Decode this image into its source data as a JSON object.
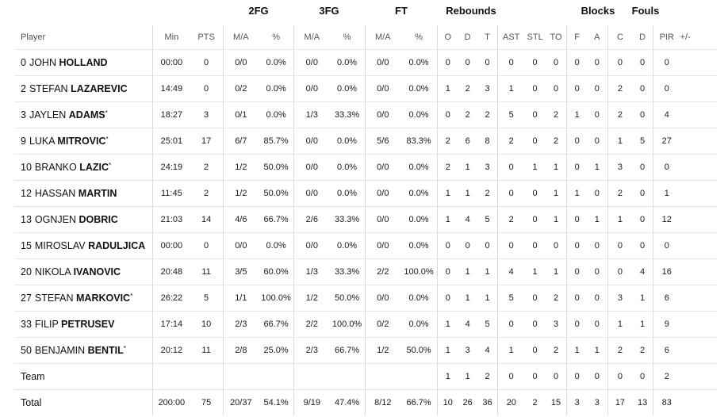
{
  "groups": {
    "fg2": "2FG",
    "fg3": "3FG",
    "ft": "FT",
    "reb": "Rebounds",
    "blk": "Blocks",
    "fouls": "Fouls"
  },
  "headers": {
    "player": "Player",
    "min": "Min",
    "pts": "PTS",
    "fg2_ma": "M/A",
    "fg2_pct": "%",
    "fg3_ma": "M/A",
    "fg3_pct": "%",
    "ft_ma": "M/A",
    "ft_pct": "%",
    "o": "O",
    "d": "D",
    "t": "T",
    "ast": "AST",
    "stl": "STL",
    "to": "TO",
    "bf": "F",
    "ba": "A",
    "fc": "C",
    "fd": "D",
    "pir": "PIR",
    "pm": "+/-"
  },
  "players": [
    {
      "num": "0",
      "first": "JOHN",
      "last": "HOLLAND",
      "star": "",
      "min": "00:00",
      "pts": "0",
      "fg2": "0/0",
      "fg2p": "0.0%",
      "fg3": "0/0",
      "fg3p": "0.0%",
      "ft": "0/0",
      "ftp": "0.0%",
      "o": "0",
      "d": "0",
      "t": "0",
      "ast": "0",
      "stl": "0",
      "to": "0",
      "bf": "0",
      "ba": "0",
      "fc": "0",
      "fd": "0",
      "pir": "0",
      "pm": ""
    },
    {
      "num": "2",
      "first": "STEFAN",
      "last": "LAZAREVIC",
      "star": "",
      "min": "14:49",
      "pts": "0",
      "fg2": "0/2",
      "fg2p": "0.0%",
      "fg3": "0/0",
      "fg3p": "0.0%",
      "ft": "0/0",
      "ftp": "0.0%",
      "o": "1",
      "d": "2",
      "t": "3",
      "ast": "1",
      "stl": "0",
      "to": "0",
      "bf": "0",
      "ba": "0",
      "fc": "2",
      "fd": "0",
      "pir": "0",
      "pm": ""
    },
    {
      "num": "3",
      "first": "JAYLEN",
      "last": "ADAMS",
      "star": "*",
      "min": "18:27",
      "pts": "3",
      "fg2": "0/1",
      "fg2p": "0.0%",
      "fg3": "1/3",
      "fg3p": "33.3%",
      "ft": "0/0",
      "ftp": "0.0%",
      "o": "0",
      "d": "2",
      "t": "2",
      "ast": "5",
      "stl": "0",
      "to": "2",
      "bf": "1",
      "ba": "0",
      "fc": "2",
      "fd": "0",
      "pir": "4",
      "pm": ""
    },
    {
      "num": "9",
      "first": "LUKA",
      "last": "MITROVIC",
      "star": "*",
      "min": "25:01",
      "pts": "17",
      "fg2": "6/7",
      "fg2p": "85.7%",
      "fg3": "0/0",
      "fg3p": "0.0%",
      "ft": "5/6",
      "ftp": "83.3%",
      "o": "2",
      "d": "6",
      "t": "8",
      "ast": "2",
      "stl": "0",
      "to": "2",
      "bf": "0",
      "ba": "0",
      "fc": "1",
      "fd": "5",
      "pir": "27",
      "pm": ""
    },
    {
      "num": "10",
      "first": "BRANKO",
      "last": "LAZIC",
      "star": "*",
      "min": "24:19",
      "pts": "2",
      "fg2": "1/2",
      "fg2p": "50.0%",
      "fg3": "0/0",
      "fg3p": "0.0%",
      "ft": "0/0",
      "ftp": "0.0%",
      "o": "2",
      "d": "1",
      "t": "3",
      "ast": "0",
      "stl": "1",
      "to": "1",
      "bf": "0",
      "ba": "1",
      "fc": "3",
      "fd": "0",
      "pir": "0",
      "pm": ""
    },
    {
      "num": "12",
      "first": "HASSAN",
      "last": "MARTIN",
      "star": "",
      "min": "11:45",
      "pts": "2",
      "fg2": "1/2",
      "fg2p": "50.0%",
      "fg3": "0/0",
      "fg3p": "0.0%",
      "ft": "0/0",
      "ftp": "0.0%",
      "o": "1",
      "d": "1",
      "t": "2",
      "ast": "0",
      "stl": "0",
      "to": "1",
      "bf": "1",
      "ba": "0",
      "fc": "2",
      "fd": "0",
      "pir": "1",
      "pm": ""
    },
    {
      "num": "13",
      "first": "OGNJEN",
      "last": "DOBRIC",
      "star": "",
      "min": "21:03",
      "pts": "14",
      "fg2": "4/6",
      "fg2p": "66.7%",
      "fg3": "2/6",
      "fg3p": "33.3%",
      "ft": "0/0",
      "ftp": "0.0%",
      "o": "1",
      "d": "4",
      "t": "5",
      "ast": "2",
      "stl": "0",
      "to": "1",
      "bf": "0",
      "ba": "1",
      "fc": "1",
      "fd": "0",
      "pir": "12",
      "pm": ""
    },
    {
      "num": "15",
      "first": "MIROSLAV",
      "last": "RADULJICA",
      "star": "",
      "min": "00:00",
      "pts": "0",
      "fg2": "0/0",
      "fg2p": "0.0%",
      "fg3": "0/0",
      "fg3p": "0.0%",
      "ft": "0/0",
      "ftp": "0.0%",
      "o": "0",
      "d": "0",
      "t": "0",
      "ast": "0",
      "stl": "0",
      "to": "0",
      "bf": "0",
      "ba": "0",
      "fc": "0",
      "fd": "0",
      "pir": "0",
      "pm": ""
    },
    {
      "num": "20",
      "first": "NIKOLA",
      "last": "IVANOVIC",
      "star": "",
      "min": "20:48",
      "pts": "11",
      "fg2": "3/5",
      "fg2p": "60.0%",
      "fg3": "1/3",
      "fg3p": "33.3%",
      "ft": "2/2",
      "ftp": "100.0%",
      "o": "0",
      "d": "1",
      "t": "1",
      "ast": "4",
      "stl": "1",
      "to": "1",
      "bf": "0",
      "ba": "0",
      "fc": "0",
      "fd": "4",
      "pir": "16",
      "pm": ""
    },
    {
      "num": "27",
      "first": "STEFAN",
      "last": "MARKOVIC",
      "star": "*",
      "min": "26:22",
      "pts": "5",
      "fg2": "1/1",
      "fg2p": "100.0%",
      "fg3": "1/2",
      "fg3p": "50.0%",
      "ft": "0/0",
      "ftp": "0.0%",
      "o": "0",
      "d": "1",
      "t": "1",
      "ast": "5",
      "stl": "0",
      "to": "2",
      "bf": "0",
      "ba": "0",
      "fc": "3",
      "fd": "1",
      "pir": "6",
      "pm": ""
    },
    {
      "num": "33",
      "first": "FILIP",
      "last": "PETRUSEV",
      "star": "",
      "min": "17:14",
      "pts": "10",
      "fg2": "2/3",
      "fg2p": "66.7%",
      "fg3": "2/2",
      "fg3p": "100.0%",
      "ft": "0/2",
      "ftp": "0.0%",
      "o": "1",
      "d": "4",
      "t": "5",
      "ast": "0",
      "stl": "0",
      "to": "3",
      "bf": "0",
      "ba": "0",
      "fc": "1",
      "fd": "1",
      "pir": "9",
      "pm": ""
    },
    {
      "num": "50",
      "first": "BENJAMIN",
      "last": "BENTIL",
      "star": "*",
      "min": "20:12",
      "pts": "11",
      "fg2": "2/8",
      "fg2p": "25.0%",
      "fg3": "2/3",
      "fg3p": "66.7%",
      "ft": "1/2",
      "ftp": "50.0%",
      "o": "1",
      "d": "3",
      "t": "4",
      "ast": "1",
      "stl": "0",
      "to": "2",
      "bf": "1",
      "ba": "1",
      "fc": "2",
      "fd": "2",
      "pir": "6",
      "pm": ""
    }
  ],
  "team": {
    "label": "Team",
    "o": "1",
    "d": "1",
    "t": "2",
    "ast": "0",
    "stl": "0",
    "to": "0",
    "bf": "0",
    "ba": "0",
    "fc": "0",
    "fd": "0",
    "pir": "2"
  },
  "total": {
    "label": "Total",
    "min": "200:00",
    "pts": "75",
    "fg2": "20/37",
    "fg2p": "54.1%",
    "fg3": "9/19",
    "fg3p": "47.4%",
    "ft": "8/12",
    "ftp": "66.7%",
    "o": "10",
    "d": "26",
    "t": "36",
    "ast": "20",
    "stl": "2",
    "to": "15",
    "bf": "3",
    "ba": "3",
    "fc": "17",
    "fd": "13",
    "pir": "83",
    "pm": ""
  }
}
